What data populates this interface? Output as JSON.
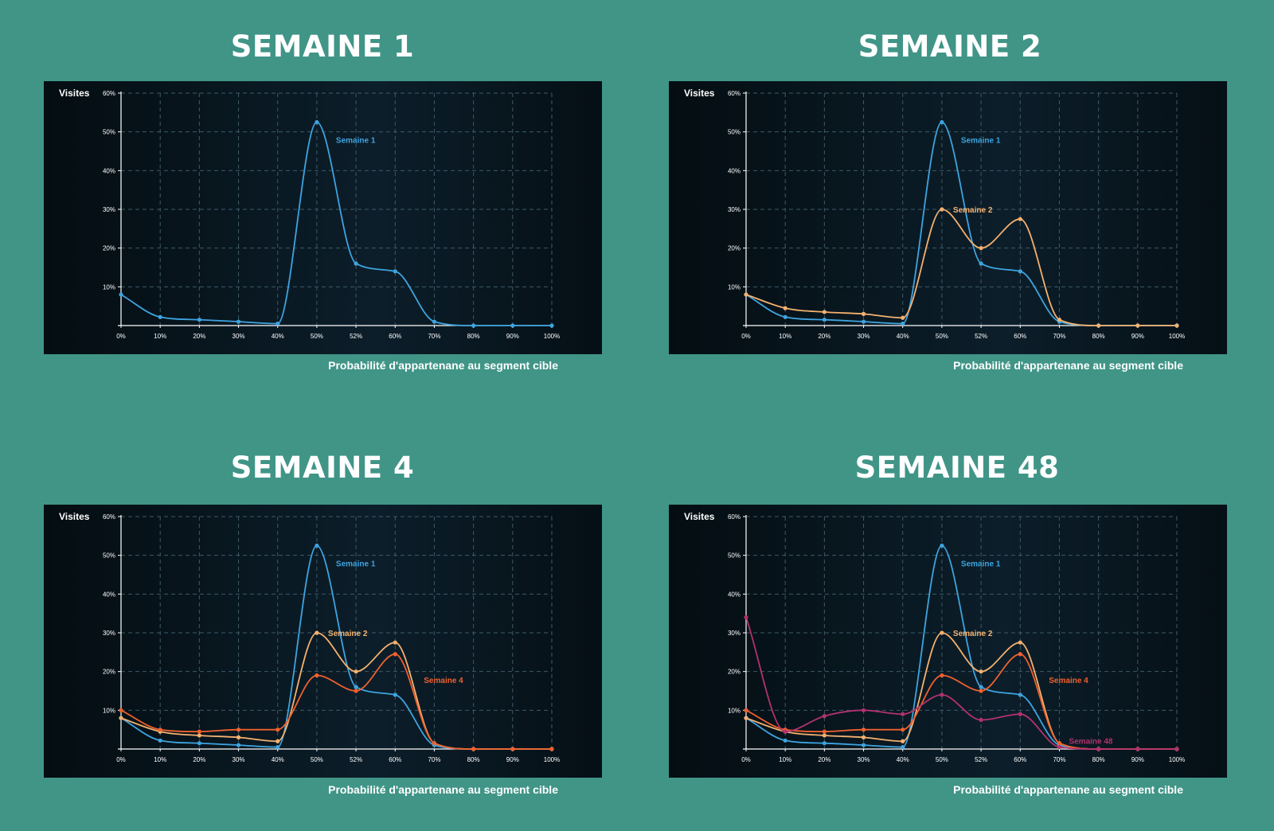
{
  "colors": {
    "background": "#409587",
    "grid": "#3e5a68",
    "axis": "#ffffff",
    "semaine1": "#3ea4e0",
    "semaine2": "#f4b16f",
    "semaine4": "#f0612e",
    "semaine48": "#b2326f"
  },
  "chart_data": [
    {
      "type": "line",
      "title": "SEMAINE 1",
      "ylabel": "Visites",
      "xlabel": "Probabilité d'appartenane au segment cible",
      "categories": [
        "0%",
        "10%",
        "20%",
        "30%",
        "40%",
        "50%",
        "52%",
        "60%",
        "70%",
        "80%",
        "90%",
        "100%"
      ],
      "y_ticks": [
        "",
        "10%",
        "20%",
        "30%",
        "40%",
        "50%",
        "60%"
      ],
      "ylim": [
        0,
        60
      ],
      "grid": true,
      "series": [
        {
          "name": "Semaine 1",
          "color_key": "semaine1",
          "values": [
            8,
            2.2,
            1.5,
            1,
            0.5,
            52.5,
            16,
            14,
            1,
            0,
            0,
            0
          ]
        }
      ]
    },
    {
      "type": "line",
      "title": "SEMAINE 2",
      "ylabel": "Visites",
      "xlabel": "Probabilité d'appartenane au segment cible",
      "categories": [
        "0%",
        "10%",
        "20%",
        "30%",
        "40%",
        "50%",
        "52%",
        "60%",
        "70%",
        "80%",
        "90%",
        "100%"
      ],
      "y_ticks": [
        "",
        "10%",
        "20%",
        "30%",
        "40%",
        "50%",
        "60%"
      ],
      "ylim": [
        0,
        60
      ],
      "grid": true,
      "series": [
        {
          "name": "Semaine 1",
          "color_key": "semaine1",
          "values": [
            8,
            2.2,
            1.5,
            1,
            0.5,
            52.5,
            16,
            14,
            1,
            0,
            0,
            0
          ]
        },
        {
          "name": "Semaine 2",
          "color_key": "semaine2",
          "values": [
            8,
            4.5,
            3.5,
            3,
            2,
            30,
            20,
            27.5,
            1.5,
            0,
            0,
            0
          ]
        }
      ]
    },
    {
      "type": "line",
      "title": "SEMAINE 4",
      "ylabel": "Visites",
      "xlabel": "Probabilité d'appartenane au segment cible",
      "categories": [
        "0%",
        "10%",
        "20%",
        "30%",
        "40%",
        "50%",
        "52%",
        "60%",
        "70%",
        "80%",
        "90%",
        "100%"
      ],
      "y_ticks": [
        "",
        "10%",
        "20%",
        "30%",
        "40%",
        "50%",
        "60%"
      ],
      "ylim": [
        0,
        60
      ],
      "grid": true,
      "series": [
        {
          "name": "Semaine 1",
          "color_key": "semaine1",
          "values": [
            8,
            2.2,
            1.5,
            1,
            0.5,
            52.5,
            16,
            14,
            1,
            0,
            0,
            0
          ]
        },
        {
          "name": "Semaine 2",
          "color_key": "semaine2",
          "values": [
            8,
            4.5,
            3.5,
            3,
            2,
            30,
            20,
            27.5,
            1.5,
            0,
            0,
            0
          ]
        },
        {
          "name": "Semaine 4",
          "color_key": "semaine4",
          "values": [
            10,
            5,
            4.5,
            5,
            5,
            19,
            15,
            24.5,
            1.5,
            0,
            0,
            0
          ]
        }
      ]
    },
    {
      "type": "line",
      "title": "SEMAINE 48",
      "ylabel": "Visites",
      "xlabel": "Probabilité d'appartenane au segment cible",
      "categories": [
        "0%",
        "10%",
        "20%",
        "30%",
        "40%",
        "50%",
        "52%",
        "60%",
        "70%",
        "80%",
        "90%",
        "100%"
      ],
      "y_ticks": [
        "",
        "10%",
        "20%",
        "30%",
        "40%",
        "50%",
        "60%"
      ],
      "ylim": [
        0,
        60
      ],
      "grid": true,
      "series": [
        {
          "name": "Semaine 1",
          "color_key": "semaine1",
          "values": [
            8,
            2.2,
            1.5,
            1,
            0.5,
            52.5,
            16,
            14,
            1,
            0,
            0,
            0
          ]
        },
        {
          "name": "Semaine 2",
          "color_key": "semaine2",
          "values": [
            8,
            4.5,
            3.5,
            3,
            2,
            30,
            20,
            27.5,
            1.5,
            0,
            0,
            0
          ]
        },
        {
          "name": "Semaine 4",
          "color_key": "semaine4",
          "values": [
            10,
            5,
            4.5,
            5,
            5,
            19,
            15,
            24.5,
            1.5,
            0,
            0,
            0
          ]
        },
        {
          "name": "Semaine 48",
          "color_key": "semaine48",
          "values": [
            34,
            4.5,
            8.5,
            10,
            9,
            14,
            7.5,
            9,
            0.5,
            0,
            0,
            0
          ]
        }
      ]
    }
  ]
}
